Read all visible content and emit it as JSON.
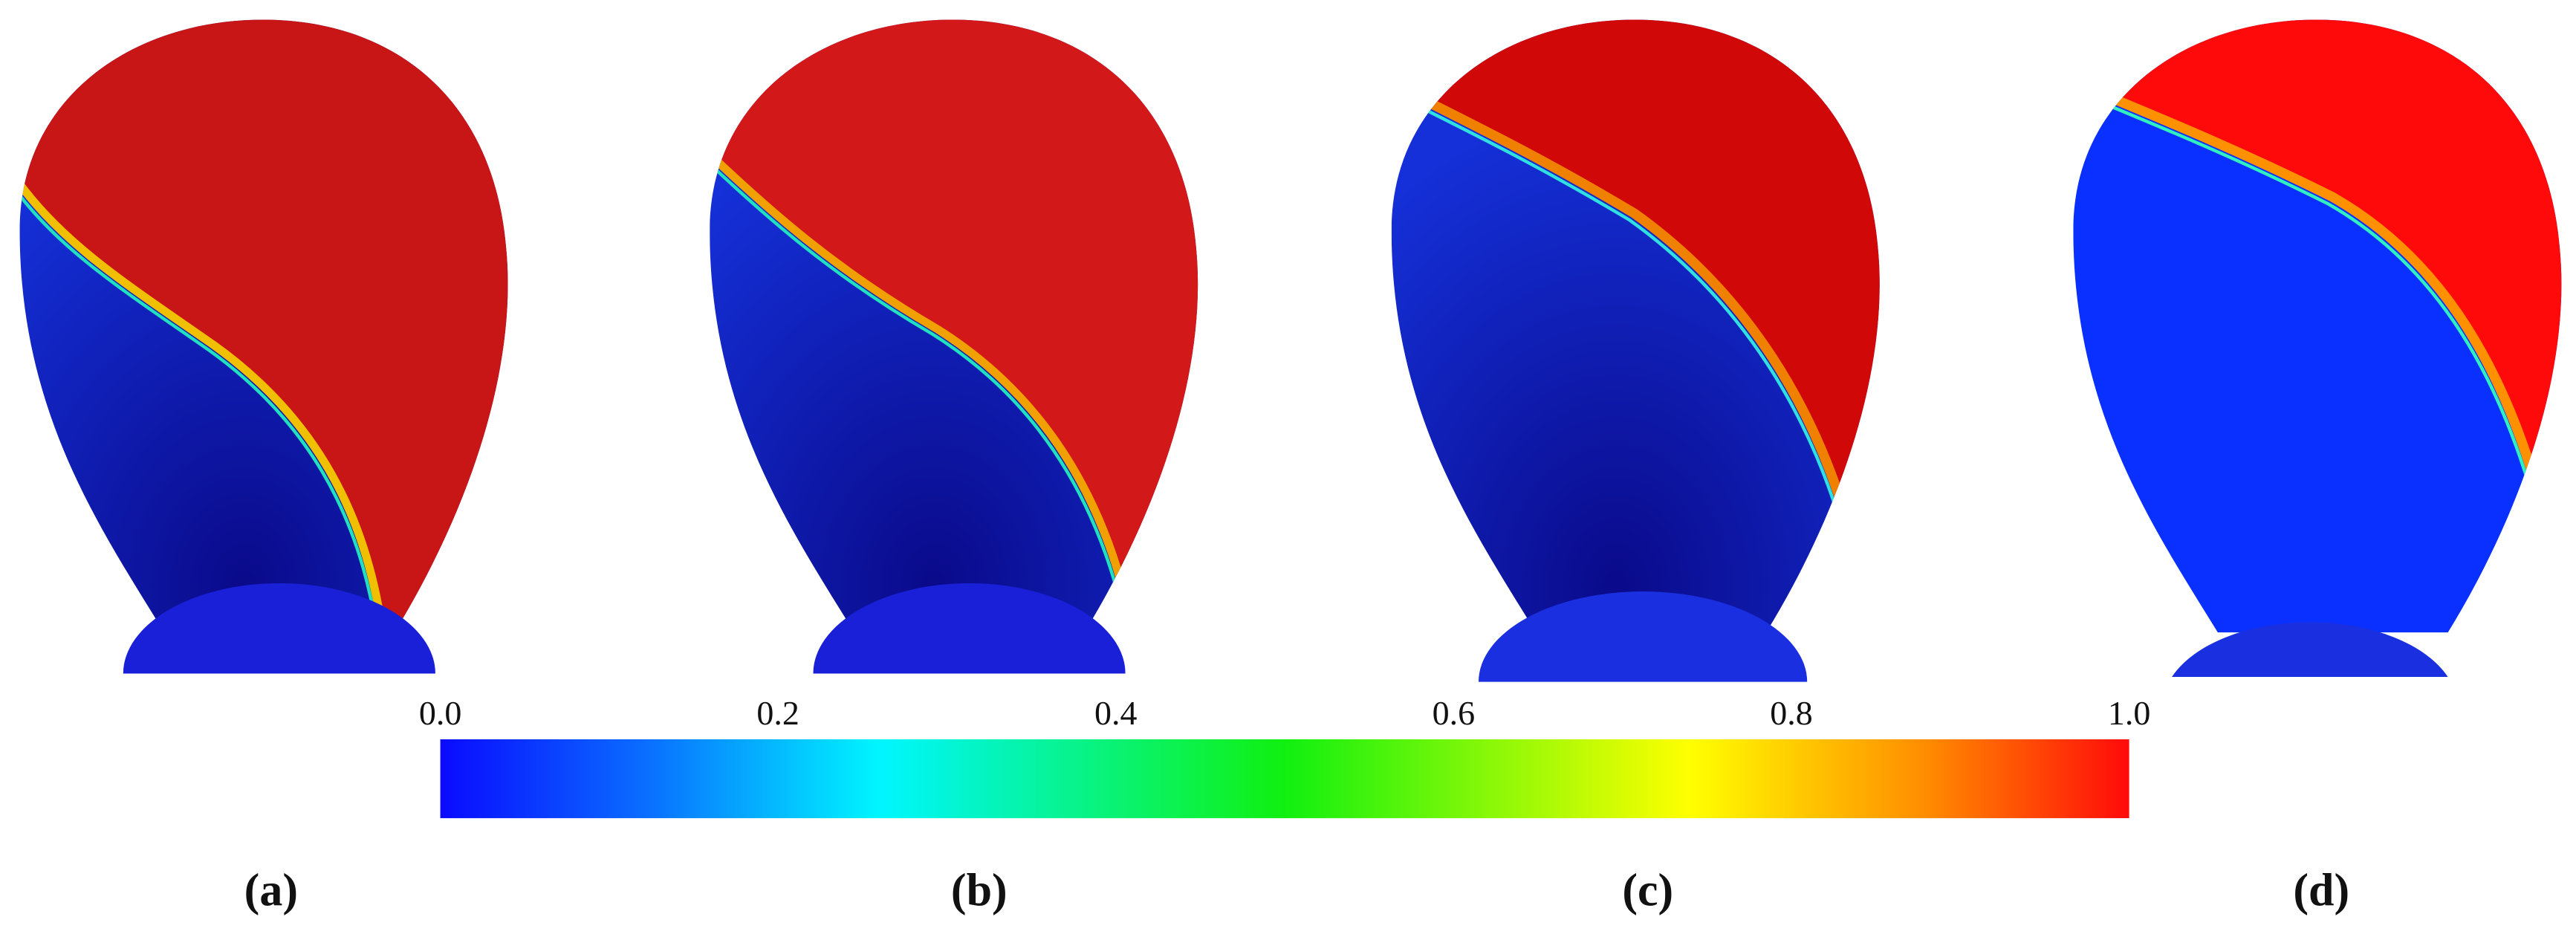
{
  "colorbar": {
    "min": 0,
    "max": 1,
    "ticks": [
      {
        "value": 0,
        "label": "0.0"
      },
      {
        "value": 0.2,
        "label": "0.2"
      },
      {
        "value": 0.4,
        "label": "0.4"
      },
      {
        "value": 0.6,
        "label": "0.6"
      },
      {
        "value": 0.8,
        "label": "0.8"
      },
      {
        "value": 1,
        "label": "1.0"
      }
    ]
  },
  "panels": [
    {
      "label": "(a)"
    },
    {
      "label": "(b)"
    },
    {
      "label": "(c)"
    },
    {
      "label": "(d)"
    }
  ]
}
